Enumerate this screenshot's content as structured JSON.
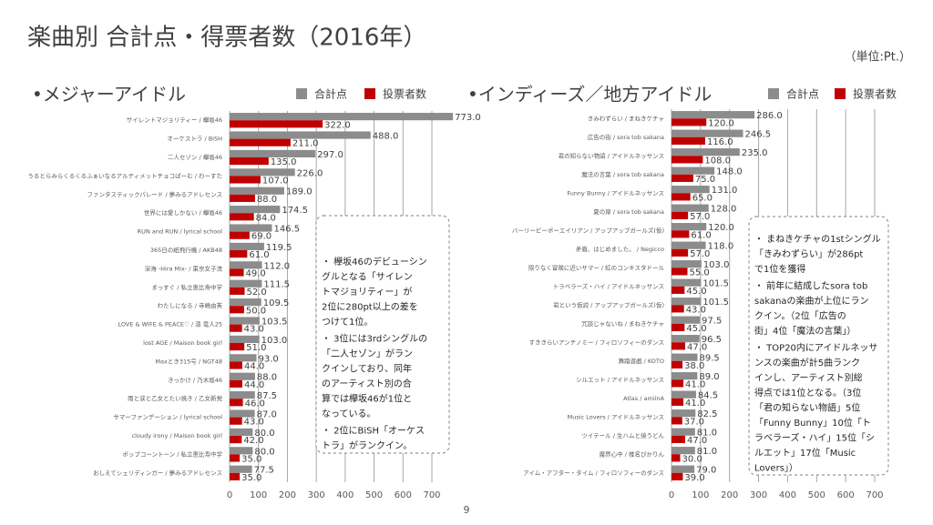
{
  "title": "楽曲別 合計点・得票者数（2016年）",
  "unit": "（単位:Pt.）",
  "page_number": "9",
  "chart_data": [
    {
      "type": "barh",
      "title": "•メジャーアイドル",
      "categories": [
        "サイレントマジョリティー / 欅坂46",
        "オーケストラ / BiSH",
        "二人セゾン / 欅坂46",
        "うるとらみらくるくるふぁいなるアルティメットチョコぱーむ / わーすた",
        "ファンタスティックパレード / 夢みるアドレセンス",
        "世界には愛しかない / 欅坂46",
        "RUN and RUN / lyrical school",
        "365日の紙飛行機 / AKB48",
        "深海 -Hira Mix- / 東京女子流",
        "まっすぐ / 私立恵比寿中学",
        "わたしになる / 寺嶋由芙",
        "LOVE & WIFE & PEACE♡ / 清 竜人25",
        "lost AGE / Maison book girl",
        "Maxとき315号 / NGT48",
        "きっかけ / 乃木坂46",
        "雨と涙と乙女とたい焼き / 乙女新党",
        "サマーファンデーション / lyrical school",
        "cloudy irony / Maison book girl",
        "ポップコーントーン / 私立恵比寿中学",
        "おしえてシェリディンガー / 夢みるアドレセンス"
      ],
      "series": [
        {
          "name": "合計点",
          "color": "#8c8c8c",
          "values": [
            773,
            488,
            297,
            226,
            189,
            174.5,
            146.5,
            119.5,
            112,
            111.5,
            109.5,
            103.5,
            103,
            93,
            88,
            87.5,
            87,
            80,
            80,
            77.5
          ],
          "value_labels": [
            "773.0",
            "488.0",
            "297.0",
            "226.0",
            "189.0",
            "174.5",
            "146.5",
            "119.5",
            "112.0",
            "111.5",
            "109.5",
            "103.5",
            "103.0",
            "93.0",
            "88.0",
            "87.5",
            "87.0",
            "80.0",
            "80.0",
            "77.5"
          ]
        },
        {
          "name": "投票者数",
          "color": "#c00000",
          "values": [
            322,
            211,
            135,
            107,
            88,
            84,
            69,
            61,
            49,
            52,
            50,
            43,
            51,
            44,
            44,
            46,
            43,
            42,
            35,
            35
          ],
          "value_labels": [
            "322.0",
            "211.0",
            "135.0",
            "107.0",
            "88.0",
            "84.0",
            "69.0",
            "61.0",
            "49.0",
            "52.0",
            "50.0",
            "43.0",
            "51.0",
            "44.0",
            "44.0",
            "46.0",
            "43.0",
            "42.0",
            "35.0",
            "35.0"
          ]
        }
      ],
      "xlim": [
        0,
        700
      ],
      "xticks": [
        0,
        100,
        200,
        300,
        400,
        500,
        600,
        700
      ],
      "grid": true,
      "notes": [
        [
          "・ 欅坂46のデビューシン",
          "グルとなる「サイレン",
          "トマジョリティー」が",
          "2位に280pt以上の差を",
          "つけて1位。"
        ],
        [
          "・ 3位には3rdシングルの",
          "「二人セゾン」がラン",
          "クインしており、同年",
          "のアーティスト別の合",
          "算では欅坂46が1位と",
          "なっている。"
        ],
        [
          "・ 2位にBiSH「オーケス",
          "トラ」がランクイン。"
        ]
      ]
    },
    {
      "type": "barh",
      "title": "•インディーズ／地方アイドル",
      "categories": [
        "きみわずらい / まねきケチャ",
        "広告の街 / sora tob sakana",
        "君の知らない物語 / アイドルネッサンス",
        "魔法の言葉 / sora tob sakana",
        "Funny Bunny / アイドルネッサンス",
        "夏の扉 / sora tob sakana",
        "バーリービーポーエイリアン / アップアップガールズ(仮)",
        "矛盾、はじめました。 / Negicco",
        "限りなく冒険に近いサマー / 虹のコンキスタドール",
        "トラベラーズ・ハイ / アイドルネッサンス",
        "君という仮説 / アップアップガールズ(仮)",
        "冗談じゃないね / まねきケチャ",
        "すききらいアンチノミー / フィロソフィーのダンス",
        "舞踏遊戯 / KOTO",
        "シルエット / アイドルネッサンス",
        "Atlas / amiinA",
        "Music Lovers / アイドルネッサンス",
        "ツイテール / 生ハムと焼うどん",
        "魔界心中 / 椎名ぴかりん",
        "アイム・アフター・タイム / フィロソフィーのダンス"
      ],
      "series": [
        {
          "name": "合計点",
          "color": "#8c8c8c",
          "values": [
            286,
            246.5,
            235,
            148,
            131,
            128,
            120,
            118,
            103,
            101.5,
            101.5,
            97.5,
            96.5,
            89.5,
            89,
            84.5,
            82.5,
            81,
            81,
            79
          ],
          "value_labels": [
            "286.0",
            "246.5",
            "235.0",
            "148.0",
            "131.0",
            "128.0",
            "120.0",
            "118.0",
            "103.0",
            "101.5",
            "101.5",
            "97.5",
            "96.5",
            "89.5",
            "89.0",
            "84.5",
            "82.5",
            "81.0",
            "81.0",
            "79.0"
          ]
        },
        {
          "name": "投票者数",
          "color": "#c00000",
          "values": [
            120,
            116,
            108,
            75,
            65,
            57,
            61,
            57,
            55,
            45,
            43,
            45,
            47,
            38,
            41,
            41,
            37,
            47,
            30,
            39
          ],
          "value_labels": [
            "120.0",
            "116.0",
            "108.0",
            "75.0",
            "65.0",
            "57.0",
            "61.0",
            "57.0",
            "55.0",
            "45.0",
            "43.0",
            "45.0",
            "47.0",
            "38.0",
            "41.0",
            "41.0",
            "37.0",
            "47.0",
            "30.0",
            "39.0"
          ]
        }
      ],
      "xlim": [
        0,
        700
      ],
      "xticks": [
        0,
        100,
        200,
        300,
        400,
        500,
        600,
        700
      ],
      "grid": true,
      "notes": [
        [
          "・ まねきケチャの1stシングル",
          "「きみわずらい」が286pt",
          "で1位を獲得"
        ],
        [
          "・ 前年に結成したsora tob",
          "sakanaの楽曲が上位にラン",
          "クイン。（2位「広告の",
          "街」4位「魔法の言葉」）"
        ],
        [
          "・ TOP20内にアイドルネッサ",
          "ンスの楽曲が計5曲ランク",
          "インし、アーティスト別総",
          "得点では1位となる。（3位",
          "「君の知らない物語」5位",
          "「Funny Bunny」10位「ト",
          "ラベラーズ・ハイ」15位「シ",
          "ルエット」17位「Music",
          "Lovers」）"
        ]
      ]
    }
  ]
}
